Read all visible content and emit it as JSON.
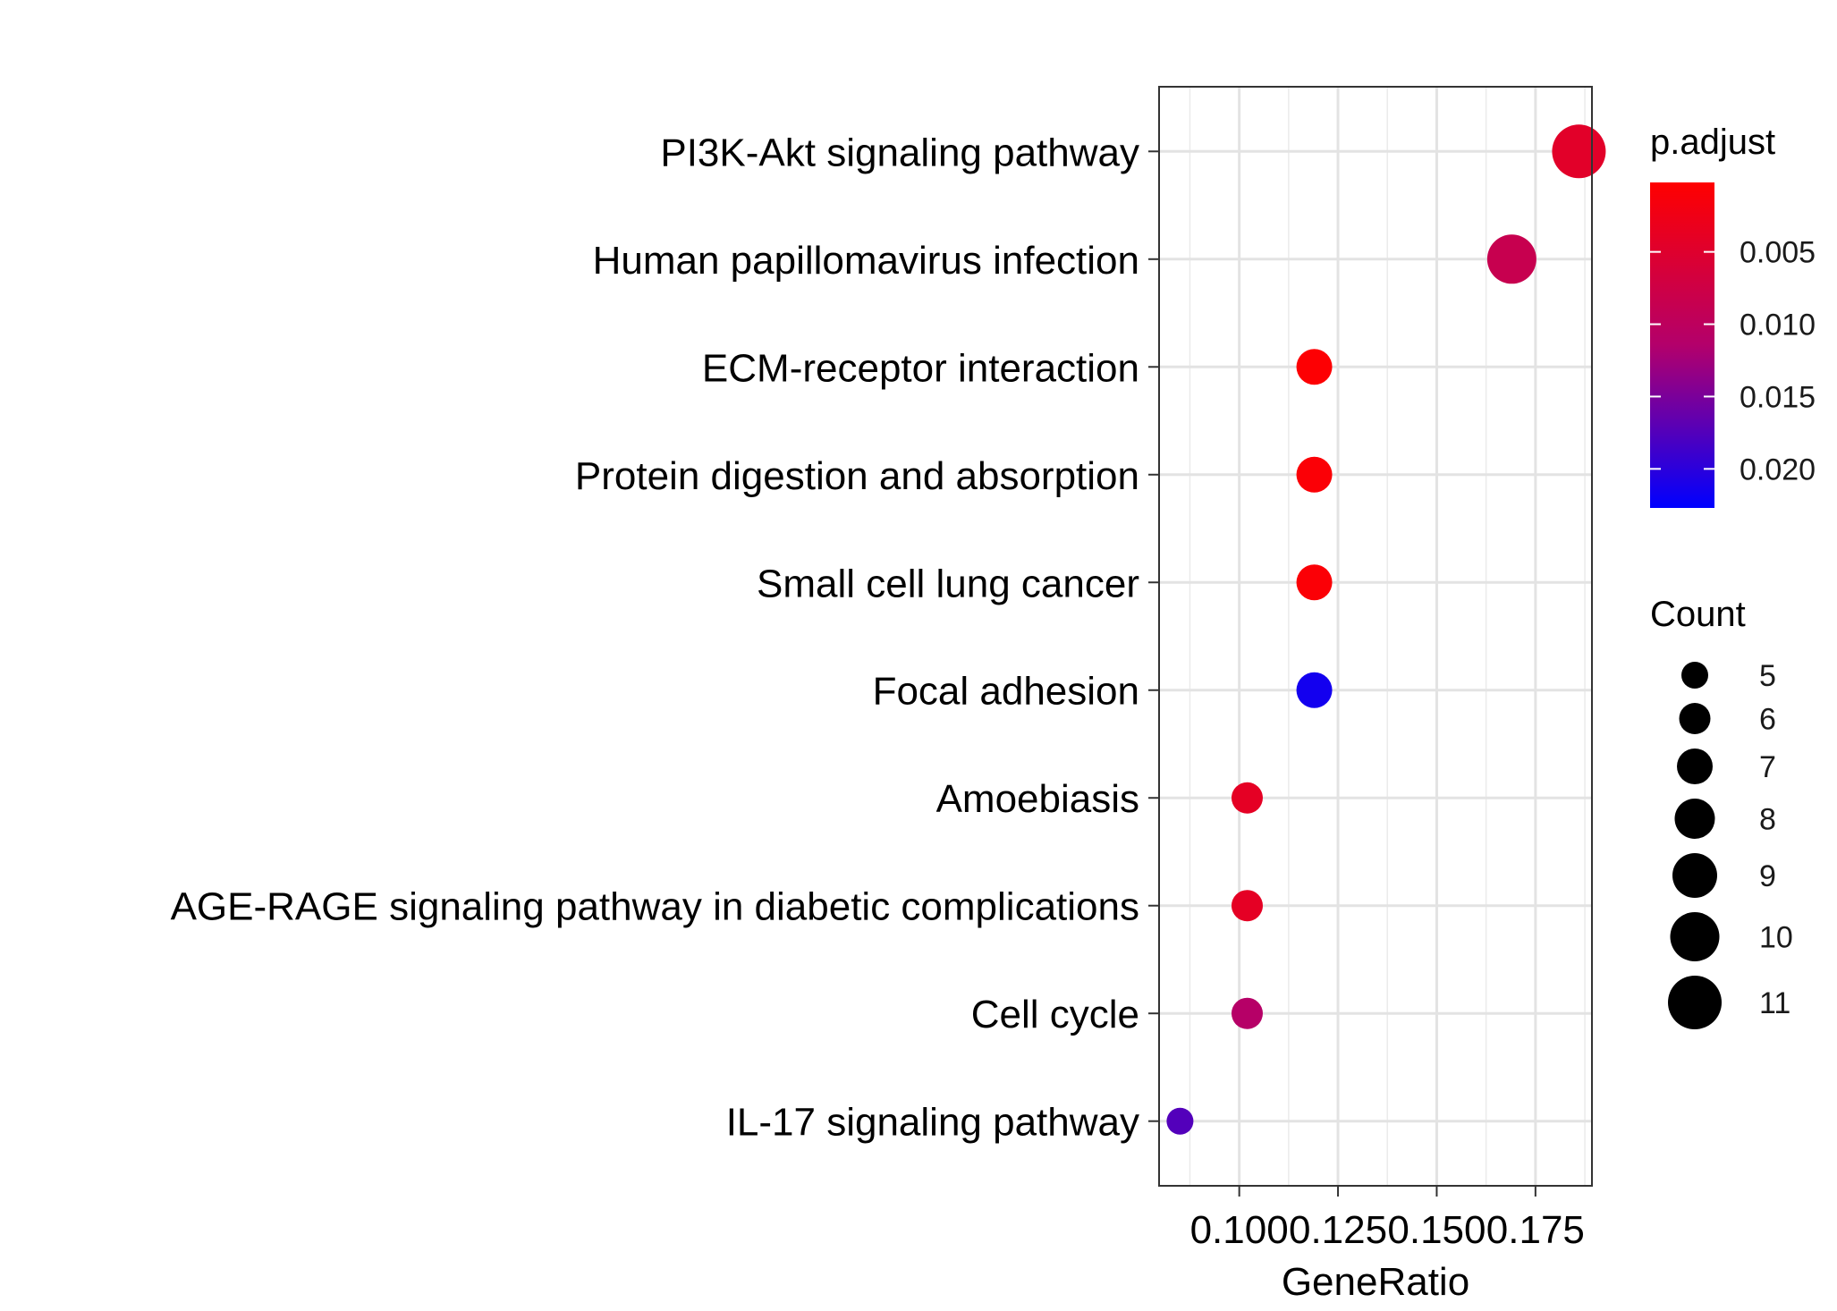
{
  "chart_data": {
    "type": "scatter",
    "xlabel": "GeneRatio",
    "ylabel": "",
    "x_ticks": [
      0.1,
      0.125,
      0.15,
      0.175
    ],
    "x_tick_labels": [
      "0.100",
      "0.125",
      "0.150",
      "0.175"
    ],
    "xlim": [
      0.0797,
      0.1893
    ],
    "categories": [
      "PI3K-Akt signaling pathway",
      "Human papillomavirus infection",
      "ECM-receptor interaction",
      "Protein digestion and absorption",
      "Small cell lung cancer",
      "Focal adhesion",
      "Amoebiasis",
      "AGE-RAGE signaling pathway in diabetic complications",
      "Cell cycle",
      "IL-17 signaling pathway"
    ],
    "points": [
      {
        "term": "PI3K-Akt signaling pathway",
        "gene_ratio": 0.186,
        "count": 11,
        "p_adjust": 0.0045
      },
      {
        "term": "Human papillomavirus infection",
        "gene_ratio": 0.169,
        "count": 10,
        "p_adjust": 0.0085
      },
      {
        "term": "ECM-receptor interaction",
        "gene_ratio": 0.119,
        "count": 7,
        "p_adjust": 0.0005
      },
      {
        "term": "Protein digestion and absorption",
        "gene_ratio": 0.119,
        "count": 7,
        "p_adjust": 0.0008
      },
      {
        "term": "Small cell lung cancer",
        "gene_ratio": 0.119,
        "count": 7,
        "p_adjust": 0.0008
      },
      {
        "term": "Focal adhesion",
        "gene_ratio": 0.119,
        "count": 7,
        "p_adjust": 0.0215
      },
      {
        "term": "Amoebiasis",
        "gene_ratio": 0.102,
        "count": 6,
        "p_adjust": 0.004
      },
      {
        "term": "AGE-RAGE signaling pathway in diabetic complications",
        "gene_ratio": 0.102,
        "count": 6,
        "p_adjust": 0.004
      },
      {
        "term": "Cell cycle",
        "gene_ratio": 0.102,
        "count": 6,
        "p_adjust": 0.011
      },
      {
        "term": "IL-17 signaling pathway",
        "gene_ratio": 0.085,
        "count": 5,
        "p_adjust": 0.0175
      }
    ],
    "grid": true,
    "color_legend": {
      "title": "p.adjust",
      "low_color": "#ff0000",
      "high_color": "#0000ff",
      "range": [
        0.0002,
        0.0227
      ],
      "ticks": [
        0.005,
        0.01,
        0.015,
        0.02
      ],
      "tick_labels": [
        "0.005",
        "0.010",
        "0.015",
        "0.020"
      ]
    },
    "size_legend": {
      "title": "Count",
      "values": [
        5,
        6,
        7,
        8,
        9,
        10,
        11
      ],
      "labels": [
        "5",
        "6",
        "7",
        "8",
        "9",
        "10",
        "11"
      ]
    },
    "legend_position": "right"
  }
}
